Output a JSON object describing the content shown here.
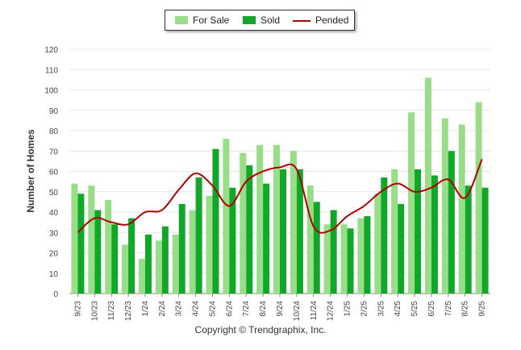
{
  "chart_data": {
    "type": "bar",
    "title": "",
    "xlabel": "",
    "ylabel": "Number of Homes",
    "ylim": [
      0,
      120
    ],
    "yticks": [
      0,
      10,
      20,
      30,
      40,
      50,
      60,
      70,
      80,
      90,
      100,
      110,
      120
    ],
    "grid": true,
    "legend_position": "top-center",
    "categories": [
      "9/23",
      "10/23",
      "11/23",
      "12/23",
      "1/24",
      "2/24",
      "3/24",
      "4/24",
      "5/24",
      "6/24",
      "7/24",
      "8/24",
      "9/24",
      "10/24",
      "11/24",
      "12/24",
      "1/25",
      "2/25",
      "3/25",
      "4/25",
      "5/25",
      "6/25",
      "7/25",
      "8/25",
      "9/25"
    ],
    "series": [
      {
        "name": "For Sale",
        "type": "bar",
        "color": "#99dd88",
        "values": [
          54,
          53,
          46,
          24,
          17,
          26,
          29,
          41,
          48,
          76,
          69,
          73,
          73,
          70,
          53,
          34,
          34,
          37,
          49,
          61,
          89,
          106,
          86,
          83,
          94
        ]
      },
      {
        "name": "Sold",
        "type": "bar",
        "color": "#11a82a",
        "values": [
          49,
          41,
          34,
          37,
          29,
          33,
          44,
          57,
          71,
          52,
          63,
          54,
          61,
          61,
          45,
          41,
          32,
          38,
          57,
          44,
          61,
          58,
          70,
          53,
          52
        ]
      },
      {
        "name": "Pended",
        "type": "line",
        "color": "#b00000",
        "values": [
          30,
          37,
          35,
          34,
          40,
          41,
          51,
          59,
          53,
          43,
          55,
          60,
          62,
          61,
          33,
          31,
          38,
          43,
          50,
          54,
          50,
          52,
          56,
          47,
          66
        ]
      }
    ]
  },
  "footer": {
    "copyright": "Copyright © Trendgraphix, Inc."
  }
}
